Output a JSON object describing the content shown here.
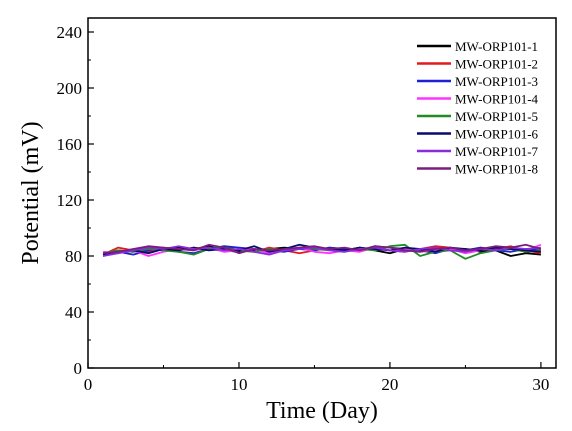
{
  "chart_data": {
    "type": "line",
    "xlabel": "Time (Day)",
    "ylabel": "Potential (mV)",
    "xlim": [
      0,
      31
    ],
    "ylim": [
      0,
      250
    ],
    "xticks": [
      0,
      10,
      20,
      30
    ],
    "yticks": [
      0,
      40,
      80,
      120,
      160,
      200,
      240
    ],
    "grid": false,
    "legend_position": "top-right",
    "x": [
      1,
      2,
      3,
      4,
      5,
      6,
      7,
      8,
      9,
      10,
      11,
      12,
      13,
      14,
      15,
      16,
      17,
      18,
      19,
      20,
      21,
      22,
      23,
      24,
      25,
      26,
      27,
      28,
      29,
      30
    ],
    "series": [
      {
        "name": "MW-ORP101-1",
        "color": "#000000",
        "values": [
          82,
          84,
          83,
          85,
          84,
          86,
          85,
          87,
          84,
          83,
          84,
          85,
          86,
          85,
          86,
          85,
          84,
          86,
          84,
          82,
          85,
          84,
          86,
          84,
          85,
          83,
          84,
          80,
          82,
          81
        ]
      },
      {
        "name": "MW-ORP101-2",
        "color": "#e41a1c",
        "values": [
          81,
          86,
          84,
          83,
          85,
          84,
          86,
          85,
          87,
          84,
          83,
          86,
          84,
          82,
          84,
          86,
          85,
          84,
          86,
          84,
          83,
          85,
          87,
          86,
          84,
          86,
          85,
          87,
          84,
          82
        ]
      },
      {
        "name": "MW-ORP101-3",
        "color": "#1f1fd6",
        "values": [
          80,
          83,
          81,
          84,
          86,
          83,
          82,
          85,
          87,
          86,
          85,
          84,
          83,
          85,
          84,
          86,
          85,
          84,
          87,
          86,
          85,
          84,
          82,
          85,
          84,
          86,
          84,
          83,
          85,
          84
        ]
      },
      {
        "name": "MW-ORP101-4",
        "color": "#ff33ff",
        "values": [
          83,
          82,
          84,
          80,
          83,
          85,
          84,
          86,
          83,
          84,
          85,
          82,
          84,
          86,
          83,
          82,
          84,
          83,
          86,
          84,
          85,
          83,
          84,
          85,
          82,
          84,
          86,
          85,
          84,
          88
        ]
      },
      {
        "name": "MW-ORP101-5",
        "color": "#238b23",
        "values": [
          82,
          84,
          83,
          85,
          84,
          83,
          81,
          85,
          86,
          84,
          83,
          85,
          84,
          86,
          85,
          84,
          83,
          85,
          84,
          87,
          88,
          80,
          83,
          84,
          78,
          82,
          84,
          85,
          83,
          84
        ]
      },
      {
        "name": "MW-ORP101-6",
        "color": "#0a0a6e",
        "values": [
          81,
          83,
          84,
          82,
          85,
          84,
          86,
          84,
          85,
          84,
          87,
          83,
          85,
          88,
          86,
          85,
          84,
          86,
          85,
          84,
          86,
          85,
          83,
          86,
          85,
          84,
          86,
          85,
          84,
          83
        ]
      },
      {
        "name": "MW-ORP101-7",
        "color": "#8a2be2",
        "values": [
          80,
          82,
          84,
          86,
          85,
          87,
          85,
          86,
          84,
          85,
          83,
          81,
          84,
          85,
          86,
          84,
          83,
          85,
          86,
          84,
          83,
          85,
          86,
          84,
          83,
          85,
          84,
          86,
          85,
          86
        ]
      },
      {
        "name": "MW-ORP101-8",
        "color": "#7b1e7b",
        "values": [
          82,
          83,
          85,
          87,
          86,
          85,
          84,
          88,
          86,
          82,
          85,
          84,
          85,
          86,
          87,
          85,
          86,
          84,
          87,
          86,
          84,
          83,
          85,
          86,
          84,
          85,
          87,
          86,
          88,
          85
        ]
      }
    ]
  }
}
